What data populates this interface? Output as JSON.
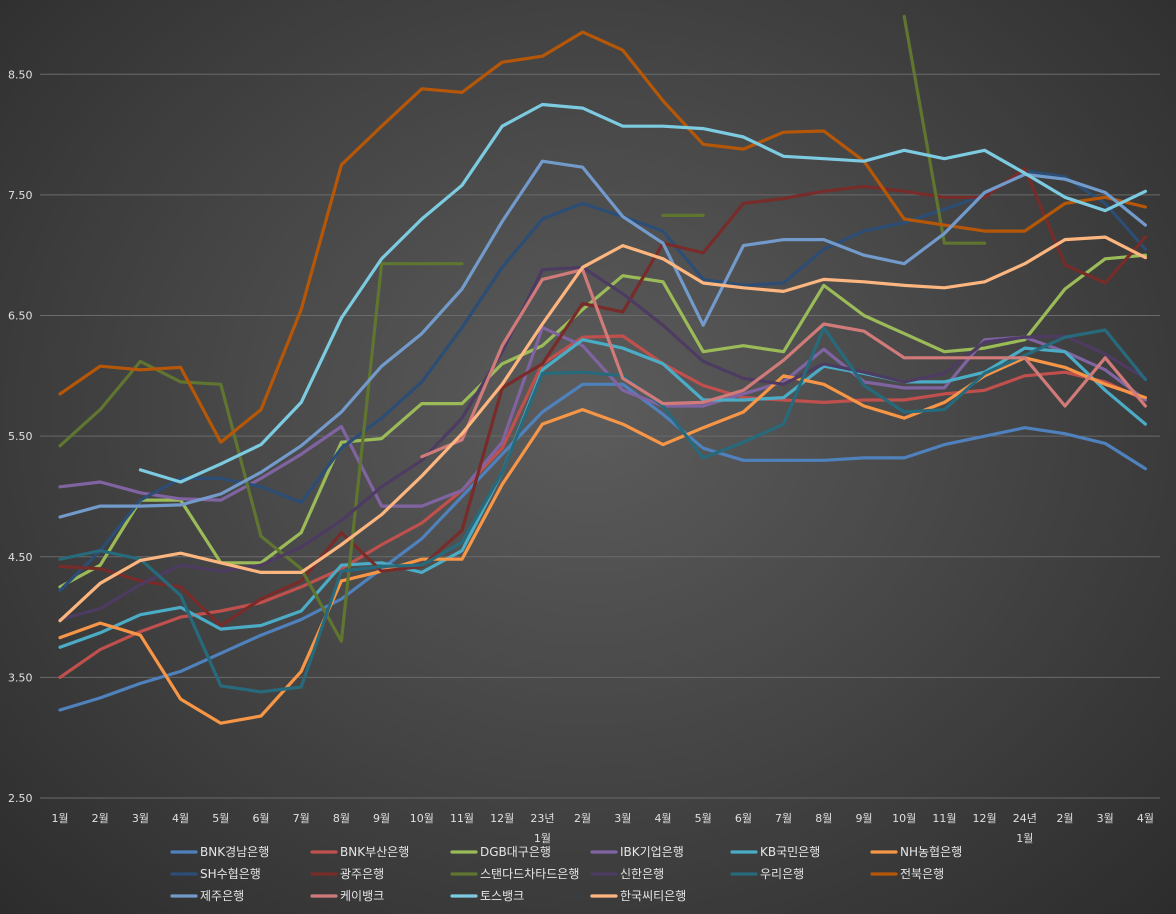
{
  "chart_data": {
    "type": "line",
    "title": "",
    "xlabel": "",
    "ylabel": "",
    "ylim": [
      2.5,
      9.0
    ],
    "yticks": [
      2.5,
      3.5,
      4.5,
      5.5,
      6.5,
      7.5,
      8.5
    ],
    "ytick_labels": [
      "2.50",
      "3.50",
      "4.50",
      "5.50",
      "6.50",
      "7.50",
      "8.50"
    ],
    "grid": true,
    "legend_position": "bottom",
    "categories": [
      {
        "label": "1월",
        "sub": ""
      },
      {
        "label": "2월",
        "sub": ""
      },
      {
        "label": "3월",
        "sub": ""
      },
      {
        "label": "4월",
        "sub": ""
      },
      {
        "label": "5월",
        "sub": ""
      },
      {
        "label": "6월",
        "sub": ""
      },
      {
        "label": "7월",
        "sub": ""
      },
      {
        "label": "8월",
        "sub": ""
      },
      {
        "label": "9월",
        "sub": ""
      },
      {
        "label": "10월",
        "sub": ""
      },
      {
        "label": "11월",
        "sub": ""
      },
      {
        "label": "12월",
        "sub": ""
      },
      {
        "label": "23년",
        "sub": "1월"
      },
      {
        "label": "2월",
        "sub": ""
      },
      {
        "label": "3월",
        "sub": ""
      },
      {
        "label": "4월",
        "sub": ""
      },
      {
        "label": "5월",
        "sub": ""
      },
      {
        "label": "6월",
        "sub": ""
      },
      {
        "label": "7월",
        "sub": ""
      },
      {
        "label": "8월",
        "sub": ""
      },
      {
        "label": "9월",
        "sub": ""
      },
      {
        "label": "10월",
        "sub": ""
      },
      {
        "label": "11월",
        "sub": ""
      },
      {
        "label": "12월",
        "sub": ""
      },
      {
        "label": "24년",
        "sub": "1월"
      },
      {
        "label": "2월",
        "sub": ""
      },
      {
        "label": "3월",
        "sub": ""
      },
      {
        "label": "4월",
        "sub": ""
      }
    ],
    "series": [
      {
        "name": "BNK경남은행",
        "color": "#4f81bd",
        "values": [
          3.23,
          3.33,
          3.45,
          3.55,
          3.7,
          3.85,
          3.98,
          4.15,
          4.4,
          4.65,
          5.0,
          5.35,
          5.7,
          5.93,
          5.93,
          5.68,
          5.4,
          5.3,
          5.3,
          5.3,
          5.32,
          5.32,
          5.43,
          5.5,
          5.57,
          5.52,
          5.44,
          5.23
        ]
      },
      {
        "name": "BNK부산은행",
        "color": "#c0504d",
        "values": [
          3.5,
          3.73,
          3.88,
          4.0,
          4.05,
          4.12,
          4.25,
          4.4,
          4.6,
          4.78,
          5.05,
          5.4,
          6.1,
          6.32,
          6.33,
          6.1,
          5.92,
          5.82,
          5.8,
          5.78,
          5.8,
          5.8,
          5.85,
          5.88,
          6.0,
          6.03,
          5.95,
          5.8
        ]
      },
      {
        "name": "DGB대구은행",
        "color": "#9bbb59",
        "values": [
          4.25,
          4.43,
          4.97,
          4.97,
          4.45,
          4.45,
          4.7,
          5.45,
          5.48,
          5.77,
          5.77,
          6.1,
          6.25,
          6.55,
          6.83,
          6.78,
          6.2,
          6.25,
          6.2,
          6.75,
          6.5,
          6.35,
          6.2,
          6.23,
          6.3,
          6.72,
          6.97,
          7.0
        ]
      },
      {
        "name": "IBK기업은행",
        "color": "#8064a2",
        "values": [
          5.08,
          5.12,
          5.03,
          4.98,
          4.97,
          5.15,
          5.35,
          5.58,
          4.92,
          4.92,
          5.05,
          5.45,
          6.4,
          6.25,
          5.88,
          5.75,
          5.75,
          5.85,
          5.95,
          6.22,
          5.95,
          5.9,
          5.9,
          6.3,
          6.32,
          6.2,
          6.05,
          5.8
        ]
      },
      {
        "name": "KB국민은행",
        "color": "#4bacc6",
        "values": [
          3.75,
          3.87,
          4.02,
          4.08,
          3.9,
          3.93,
          4.05,
          4.43,
          4.45,
          4.37,
          4.55,
          5.2,
          6.05,
          6.3,
          6.23,
          6.1,
          5.8,
          5.8,
          5.82,
          6.08,
          6.02,
          5.95,
          5.95,
          6.03,
          6.23,
          6.2,
          5.88,
          5.6
        ]
      },
      {
        "name": "NH농협은행",
        "color": "#f79646",
        "values": [
          3.83,
          3.95,
          3.85,
          3.32,
          3.12,
          3.18,
          3.55,
          4.3,
          4.38,
          4.48,
          4.48,
          5.1,
          5.6,
          5.72,
          5.6,
          5.43,
          5.57,
          5.7,
          6.0,
          5.93,
          5.75,
          5.65,
          5.78,
          6.0,
          6.15,
          6.07,
          5.93,
          5.82
        ]
      },
      {
        "name": "SH수협은행",
        "color": "#2c4d75",
        "values": [
          4.22,
          4.55,
          4.97,
          5.15,
          5.15,
          5.08,
          4.95,
          5.4,
          5.65,
          5.95,
          6.4,
          6.9,
          7.3,
          7.43,
          7.32,
          7.2,
          6.8,
          6.75,
          6.77,
          7.05,
          7.2,
          7.27,
          7.38,
          7.5,
          7.7,
          7.65,
          7.43,
          7.05
        ]
      },
      {
        "name": "광주은행",
        "color": "#772c2a",
        "values": [
          4.42,
          4.4,
          4.3,
          4.25,
          3.93,
          4.15,
          4.3,
          4.7,
          4.38,
          4.42,
          4.72,
          5.9,
          6.1,
          6.6,
          6.53,
          7.1,
          7.02,
          7.43,
          7.47,
          7.53,
          7.57,
          7.53,
          7.48,
          7.48,
          7.72,
          6.92,
          6.77,
          7.15
        ]
      },
      {
        "name": "스탠다드차타드은행",
        "color": "#5f7530",
        "values": [
          5.42,
          5.72,
          6.12,
          5.95,
          5.93,
          4.67,
          4.4,
          3.8,
          6.93,
          6.93,
          6.93,
          null,
          null,
          null,
          null,
          7.33,
          7.33,
          null,
          null,
          null,
          null,
          8.98,
          7.1,
          7.1,
          null,
          null,
          null,
          null
        ],
        "segments": [
          [
            0,
            8
          ],
          [
            8,
            10
          ],
          [
            15,
            16
          ],
          [
            20,
            23
          ]
        ]
      },
      {
        "name": "신한은행",
        "color": "#4d3b62",
        "values": [
          3.98,
          4.07,
          4.27,
          4.43,
          4.38,
          4.43,
          4.58,
          4.8,
          5.08,
          5.3,
          5.65,
          6.2,
          6.88,
          6.9,
          6.68,
          6.42,
          6.12,
          5.98,
          5.93,
          6.1,
          6.03,
          5.95,
          6.02,
          6.28,
          6.32,
          6.33,
          6.18,
          5.98
        ]
      },
      {
        "name": "우리은행",
        "color": "#276a7c",
        "values": [
          4.48,
          4.55,
          4.48,
          4.18,
          3.43,
          3.38,
          3.42,
          4.38,
          4.42,
          4.43,
          4.62,
          5.2,
          6.02,
          6.03,
          6.0,
          5.75,
          5.32,
          5.45,
          5.6,
          6.4,
          5.92,
          5.7,
          5.72,
          6.02,
          6.17,
          6.32,
          6.38,
          5.97
        ]
      },
      {
        "name": "전북은행",
        "color": "#b65708",
        "values": [
          5.85,
          6.08,
          6.05,
          6.07,
          5.45,
          5.72,
          6.55,
          7.75,
          8.07,
          8.38,
          8.35,
          8.6,
          8.65,
          8.85,
          8.7,
          8.28,
          7.92,
          7.88,
          8.02,
          8.03,
          7.78,
          7.3,
          7.25,
          7.2,
          7.2,
          7.43,
          7.48,
          7.4
        ]
      },
      {
        "name": "제주은행",
        "color": "#729aca",
        "values": [
          4.83,
          4.92,
          4.92,
          4.93,
          5.02,
          5.2,
          5.42,
          5.7,
          6.08,
          6.35,
          6.72,
          7.28,
          7.78,
          7.73,
          7.32,
          7.1,
          6.42,
          7.08,
          7.13,
          7.13,
          7.0,
          6.93,
          7.18,
          7.52,
          7.67,
          7.63,
          7.52,
          7.25
        ]
      },
      {
        "name": "케이뱅크",
        "color": "#d07b79",
        "values": [
          null,
          null,
          null,
          null,
          null,
          null,
          null,
          null,
          null,
          5.33,
          5.47,
          6.25,
          6.8,
          6.88,
          5.98,
          5.77,
          5.78,
          5.88,
          6.13,
          6.43,
          6.37,
          6.15,
          6.15,
          6.15,
          6.15,
          5.75,
          6.15,
          5.75
        ],
        "segments": [
          [
            9,
            27
          ]
        ]
      },
      {
        "name": "토스뱅크",
        "color": "#7dcbe0",
        "values": [
          null,
          null,
          5.22,
          5.12,
          5.27,
          5.43,
          5.78,
          6.48,
          6.97,
          7.3,
          7.58,
          8.07,
          8.25,
          8.22,
          8.07,
          8.07,
          8.05,
          7.98,
          7.82,
          7.8,
          7.78,
          7.87,
          7.8,
          7.87,
          7.68,
          7.48,
          7.37,
          7.53
        ],
        "segments": [
          [
            2,
            27
          ]
        ]
      },
      {
        "name": "한국씨티은행",
        "color": "#fdb67f",
        "values": [
          3.97,
          4.28,
          4.47,
          4.53,
          4.45,
          4.37,
          4.37,
          4.6,
          4.85,
          5.17,
          5.52,
          5.93,
          6.43,
          6.9,
          7.08,
          6.97,
          6.77,
          6.73,
          6.7,
          6.8,
          6.78,
          6.75,
          6.73,
          6.78,
          6.93,
          7.13,
          7.15,
          6.98
        ]
      }
    ]
  }
}
